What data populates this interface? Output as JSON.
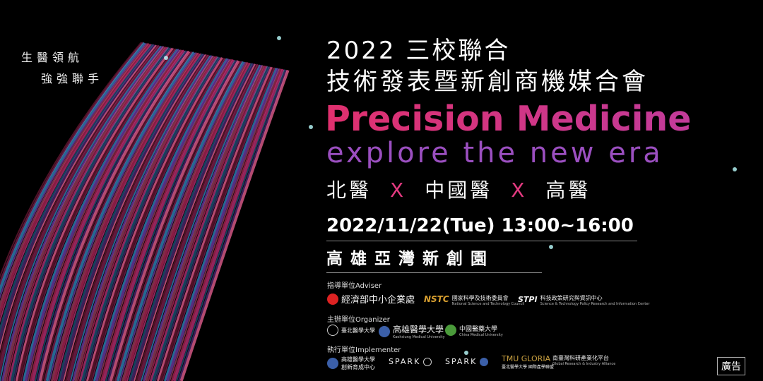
{
  "slogan": {
    "line1": "生醫領航",
    "line2": "強強聯手"
  },
  "title": {
    "line1": "2022 三校聯合",
    "line2": "技術發表暨新創商機媒合會"
  },
  "headline": "Precision Medicine",
  "subheadline": "explore the new era",
  "schools": {
    "a": "北醫",
    "x": "X",
    "b": "中國醫",
    "c": "高醫"
  },
  "date": "2022/11/22(Tue) 13:00~16:00",
  "venue": "高雄亞灣新創園",
  "adviser": {
    "label": "指導單位Adviser",
    "logos": [
      "經濟部中小企業處",
      "NSTC",
      "國家科學及技術委員會",
      "National Science and Technology Council",
      "STPI",
      "科技政策研究與資訊中心",
      "Science & Technology Policy Research and Information Center"
    ]
  },
  "organizer": {
    "label": "主辦單位Organizer",
    "logos": [
      "臺北醫學大學",
      "高雄醫學大學",
      "Kaohsiung Medical University",
      "中國醫藥大學",
      "China Medical University"
    ]
  },
  "implementer": {
    "label": "執行單位Implementer",
    "logos": [
      "高雄醫學大學",
      "創新育成中心",
      "SPARK",
      "SPARK",
      "TMU GLORIA",
      "臺北醫學大學 國際產學聯盟",
      "南臺灣科研產業化平台",
      "Global Research & Industry Alliance"
    ]
  },
  "ad_badge": "廣告",
  "colors": {
    "pink": "#e0306e",
    "purple": "#9b4fc0",
    "blue": "#3aa0e0"
  }
}
